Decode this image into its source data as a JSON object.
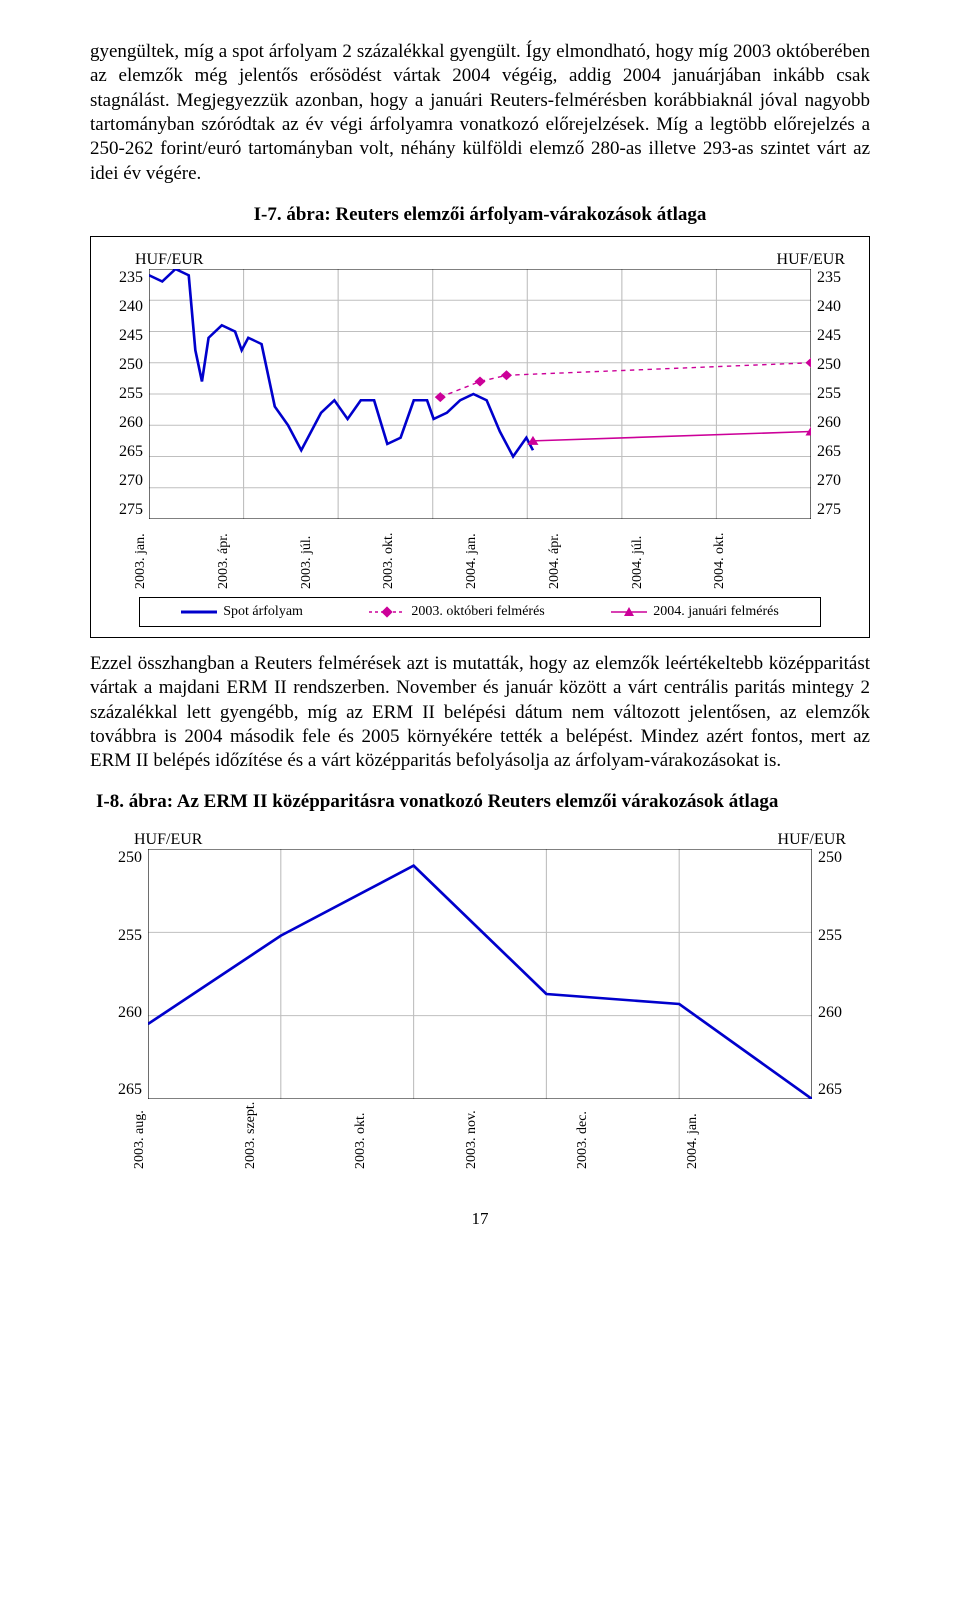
{
  "para1": "gyengültek, míg a spot árfolyam 2 százalékkal gyengült. Így elmondható, hogy míg 2003 októberében az elemzők még jelentős erősödést vártak 2004 végéig, addig 2004 januárjában inkább csak stagnálást. Megjegyezzük azonban, hogy a januári Reuters-felmérésben korábbiaknál jóval nagyobb tartományban szóródtak az év végi árfolyamra vonatkozó előrejelzések. Míg a legtöbb előrejelzés a 250-262 forint/euró tartományban volt, néhány külföldi elemző 280-as illetve 293-as szintet várt az idei év végére.",
  "fig1_title": "I-7. ábra: Reuters elemzői árfolyam-várakozások átlaga",
  "para2": "Ezzel összhangban a Reuters felmérések azt is mutatták, hogy az elemzők leértékeltebb középparitást vártak a majdani ERM II rendszerben. November és január között a várt centrális paritás mintegy 2 százalékkal lett gyengébb, míg az ERM II belépési dátum nem változott jelentősen, az elemzők továbbra is 2004 második fele és 2005 környékére tették a belépést. Mindez azért fontos, mert az ERM II belépés időzítése és a várt középparitás befolyásolja az árfolyam-várakozásokat is.",
  "fig2_title": "I-8. ábra: Az ERM II középparitásra vonatkozó Reuters elemzői várakozások átlaga",
  "chart1": {
    "type": "line",
    "unit": "HUF/EUR",
    "ylim": [
      235,
      275
    ],
    "ytick_step": 5,
    "yticks": [
      235,
      240,
      245,
      250,
      255,
      260,
      265,
      270,
      275
    ],
    "xticks": [
      "2003. jan.",
      "2003. ápr.",
      "2003. júl.",
      "2003. okt.",
      "2004. jan.",
      "2004. ápr.",
      "2004. júl.",
      "2004. okt."
    ],
    "grid_color": "#bfbfbf",
    "background_color": "#ffffff",
    "series": {
      "spot": {
        "label": "Spot árfolyam",
        "color": "#0000cc",
        "width": 2.4,
        "points": [
          [
            0,
            236
          ],
          [
            2,
            237
          ],
          [
            4,
            235
          ],
          [
            6,
            236
          ],
          [
            7,
            248
          ],
          [
            8,
            253
          ],
          [
            9,
            246
          ],
          [
            11,
            244
          ],
          [
            13,
            245
          ],
          [
            14,
            248
          ],
          [
            15,
            246
          ],
          [
            17,
            247
          ],
          [
            19,
            257
          ],
          [
            21,
            260
          ],
          [
            23,
            264
          ],
          [
            24,
            262
          ],
          [
            26,
            258
          ],
          [
            28,
            256
          ],
          [
            30,
            259
          ],
          [
            32,
            256
          ],
          [
            34,
            256
          ],
          [
            36,
            263
          ],
          [
            38,
            262
          ],
          [
            40,
            256
          ],
          [
            42,
            256
          ],
          [
            43,
            259
          ],
          [
            45,
            258
          ],
          [
            47,
            256
          ],
          [
            49,
            255
          ],
          [
            51,
            256
          ],
          [
            53,
            261
          ],
          [
            55,
            265
          ],
          [
            57,
            262
          ],
          [
            58,
            264
          ]
        ]
      },
      "okt": {
        "label": "2003. októberi felmérés",
        "color": "#cc0099",
        "marker": "diamond",
        "dash": true,
        "width": 1.4,
        "points": [
          [
            44,
            255.5
          ],
          [
            50,
            253
          ],
          [
            54,
            252
          ],
          [
            100,
            250
          ]
        ]
      },
      "jan": {
        "label": "2004. januári felmérés",
        "color": "#cc0099",
        "marker": "triangle",
        "dash": false,
        "width": 1.6,
        "points": [
          [
            58,
            262.5
          ],
          [
            100,
            261
          ]
        ]
      }
    }
  },
  "chart2": {
    "type": "line",
    "unit": "HUF/EUR",
    "ylim": [
      250,
      265
    ],
    "ytick_step": 5,
    "yticks": [
      250,
      255,
      260,
      265
    ],
    "xticks": [
      "2003. aug.",
      "2003. szept.",
      "2003. okt.",
      "2003. nov.",
      "2003. dec.",
      "2004. jan."
    ],
    "grid_color": "#bfbfbf",
    "background_color": "#ffffff",
    "series": {
      "main": {
        "color": "#0000cc",
        "width": 2.6,
        "points": [
          [
            0,
            260.5
          ],
          [
            20,
            255.2
          ],
          [
            40,
            251
          ],
          [
            60,
            258.7
          ],
          [
            80,
            259.3
          ],
          [
            100,
            265
          ]
        ]
      }
    }
  },
  "page_number": "17"
}
